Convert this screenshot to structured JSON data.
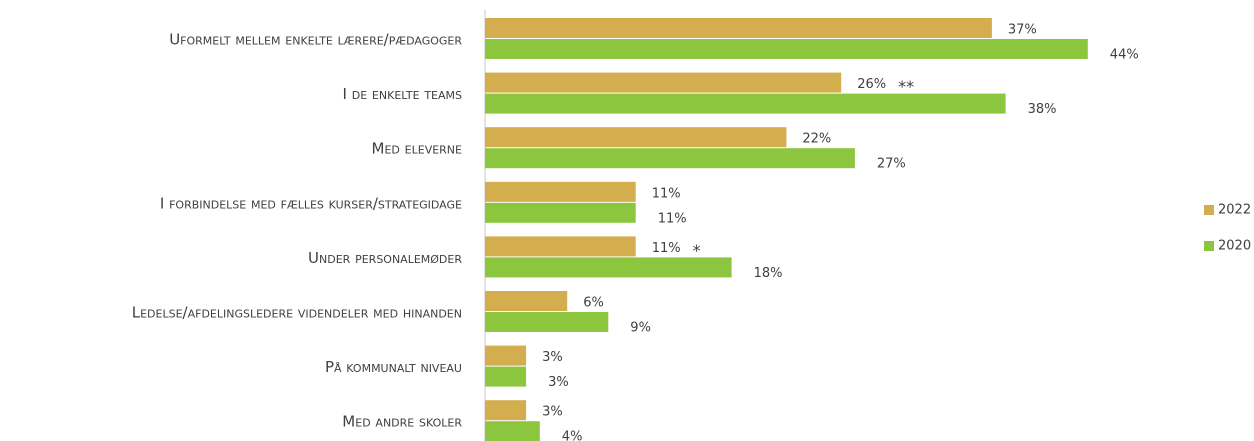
{
  "chart_data": {
    "type": "bar",
    "orientation": "horizontal",
    "categories": [
      "Uformelt mellem enkelte lærere/pædagoger",
      "I de enkelte teams",
      "Med eleverne",
      "I forbindelse med fælles kurser/strategidage",
      "Under personalemøder",
      "Ledelse/afdelingsledere videndeler med hinanden",
      "På kommunalt niveau",
      "Med andre skoler"
    ],
    "series": [
      {
        "name": "2022",
        "color": "#d4ae4e",
        "values": [
          37,
          26,
          22,
          11,
          11,
          6,
          3,
          3
        ],
        "value_labels": [
          "37%",
          "26%",
          "22%",
          "11%",
          "11%",
          "6%",
          "3%",
          "3%"
        ],
        "notes": [
          null,
          "**",
          null,
          null,
          "*",
          null,
          null,
          null
        ]
      },
      {
        "name": "2020",
        "color": "#8cc63f",
        "values": [
          44,
          38,
          27,
          11,
          18,
          9,
          3,
          4
        ],
        "value_labels": [
          "44%",
          "38%",
          "27%",
          "11%",
          "18%",
          "9%",
          "3%",
          "4%"
        ]
      }
    ],
    "xlim": [
      0,
      50
    ],
    "legend": "right"
  }
}
